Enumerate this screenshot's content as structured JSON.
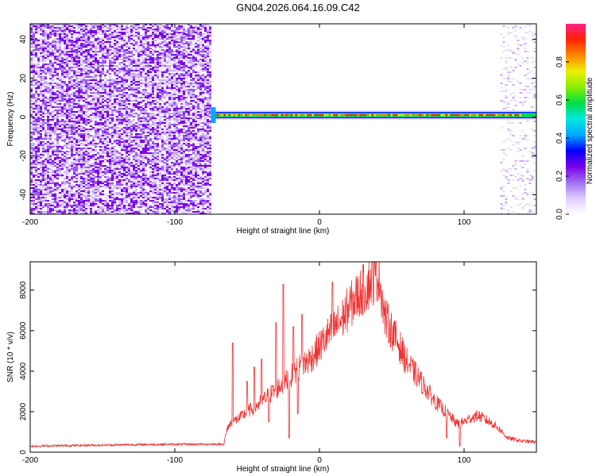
{
  "title": "GN04.2026.064.16.09.C42",
  "chart_data": [
    {
      "type": "heatmap",
      "xlabel": "Height of straight line (km)",
      "ylabel": "Frequency (Hz)",
      "xlim": [
        -200,
        150
      ],
      "ylim": [
        -50,
        48
      ],
      "xticks": [
        -200,
        -100,
        0,
        100
      ],
      "yticks": [
        -40,
        -20,
        0,
        20,
        40
      ],
      "grid": false,
      "noise_region_x": [
        -200,
        -75
      ],
      "signal_start_x": -75,
      "carrier_frequency": 1,
      "faint_noise_region_x": [
        125,
        150
      ],
      "colorbar": {
        "label": "Normalized spectral amplitude",
        "range": [
          0,
          1
        ],
        "ticks": [
          0.0,
          0.2,
          0.4,
          0.6,
          0.8
        ],
        "colors": [
          "#ffffff",
          "#e0ccff",
          "#a070f0",
          "#7a00e8",
          "#0000ff",
          "#00aaff",
          "#00e8e0",
          "#00dd44",
          "#88ee00",
          "#eeee00",
          "#ff8800",
          "#ff2200",
          "#ff2288"
        ]
      }
    },
    {
      "type": "line",
      "xlabel": "Height of straight line (km)",
      "ylabel": "SNR (10 * v/v)",
      "xlim": [
        -200,
        150
      ],
      "ylim": [
        0,
        9400
      ],
      "xticks": [
        -200,
        -100,
        0,
        100
      ],
      "yticks": [
        0,
        2000,
        4000,
        6000,
        8000
      ],
      "grid": false,
      "color": "#ee3333",
      "envelope": {
        "x": [
          -200,
          -120,
          -66,
          -65,
          -63,
          -60,
          -55,
          -50,
          -45,
          -40,
          -35,
          -30,
          -25,
          -20,
          -15,
          -10,
          -5,
          0,
          5,
          10,
          15,
          20,
          25,
          30,
          35,
          40,
          42,
          45,
          50,
          55,
          60,
          70,
          80,
          90,
          95,
          100,
          105,
          110,
          115,
          120,
          125,
          130,
          140,
          150
        ],
        "y": [
          300,
          380,
          400,
          800,
          1300,
          1500,
          1700,
          2000,
          2200,
          2500,
          2800,
          3100,
          3400,
          3700,
          4100,
          4400,
          4700,
          5200,
          5700,
          6100,
          6500,
          7100,
          7600,
          8000,
          8400,
          8800,
          8500,
          6700,
          6000,
          5300,
          4500,
          3500,
          2500,
          1800,
          1400,
          1500,
          1700,
          1800,
          1600,
          1400,
          1100,
          700,
          550,
          500
        ]
      },
      "spikes": [
        {
          "x": -60,
          "y": 5400
        },
        {
          "x": -50,
          "y": 3500
        },
        {
          "x": -45,
          "y": 4200
        },
        {
          "x": -40,
          "y": 4600
        },
        {
          "x": -30,
          "y": 6400
        },
        {
          "x": -25,
          "y": 8300
        },
        {
          "x": -21,
          "y": 8600
        },
        {
          "x": -18,
          "y": 6200
        },
        {
          "x": -12,
          "y": 6800
        },
        {
          "x": 9,
          "y": 8400
        },
        {
          "x": 38,
          "y": 9400
        }
      ],
      "dips": [
        {
          "x": -35,
          "y": 1500
        },
        {
          "x": -21,
          "y": 700
        },
        {
          "x": -15,
          "y": 1900
        },
        {
          "x": 88,
          "y": 700
        },
        {
          "x": 97,
          "y": 300
        }
      ]
    }
  ]
}
